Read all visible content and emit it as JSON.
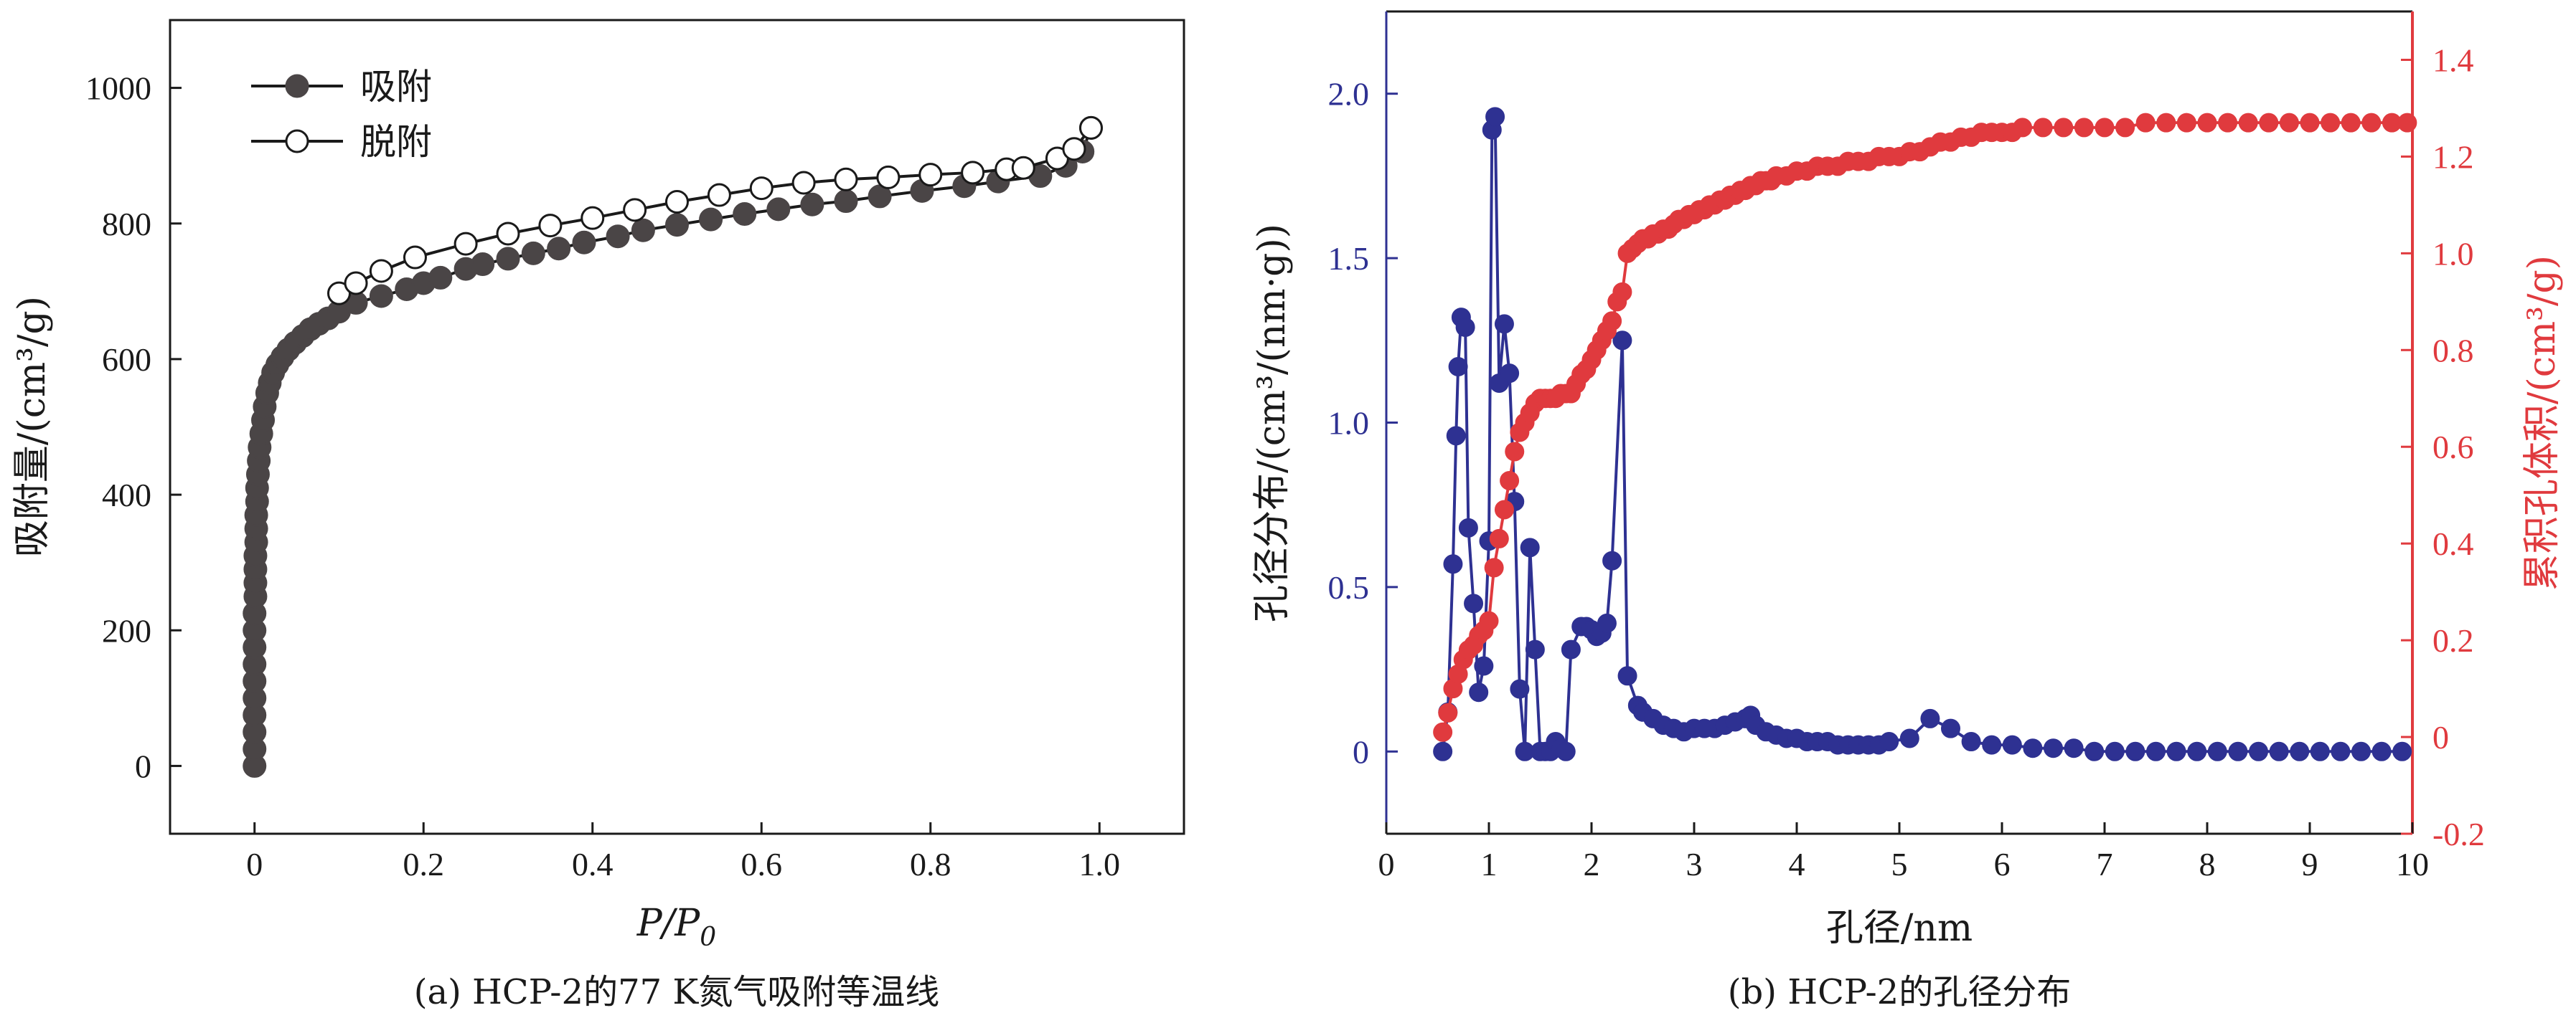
{
  "chart_data": [
    {
      "type": "scatter",
      "caption": "(a) HCP-2的77 K氮气吸附等温线",
      "xlabel_main": "P/P",
      "xlabel_sub": "0",
      "ylabel": "吸附量/(cm³/g)",
      "xlim": [
        -0.1,
        1.1
      ],
      "ylim": [
        -100,
        1100
      ],
      "xticks": [
        "0",
        "0.2",
        "0.4",
        "0.6",
        "0.8",
        "1.0"
      ],
      "yticks": [
        "0",
        "200",
        "400",
        "600",
        "800",
        "1000"
      ],
      "legend_position": "top-left",
      "series": [
        {
          "name": "吸附",
          "marker": "filled-circle",
          "color": "#4a4546",
          "x": [
            0.0,
            0.0,
            0.0,
            0.0,
            0.0,
            0.0,
            0.0,
            0.0,
            0.0,
            0.0,
            0.001,
            0.001,
            0.001,
            0.001,
            0.002,
            0.002,
            0.002,
            0.003,
            0.003,
            0.004,
            0.005,
            0.006,
            0.008,
            0.01,
            0.012,
            0.015,
            0.018,
            0.022,
            0.027,
            0.033,
            0.04,
            0.048,
            0.057,
            0.066,
            0.076,
            0.087,
            0.1,
            0.12,
            0.15,
            0.18,
            0.2,
            0.22,
            0.25,
            0.27,
            0.3,
            0.33,
            0.36,
            0.39,
            0.43,
            0.46,
            0.5,
            0.54,
            0.58,
            0.62,
            0.66,
            0.7,
            0.74,
            0.79,
            0.84,
            0.88,
            0.93,
            0.96,
            0.98,
            0.99
          ],
          "y": [
            0,
            25,
            50,
            75,
            100,
            125,
            150,
            175,
            200,
            225,
            250,
            270,
            290,
            310,
            330,
            350,
            370,
            390,
            410,
            430,
            450,
            470,
            490,
            510,
            530,
            550,
            565,
            580,
            592,
            603,
            614,
            624,
            634,
            644,
            652,
            660,
            670,
            683,
            693,
            703,
            712,
            720,
            733,
            740,
            748,
            756,
            763,
            772,
            781,
            790,
            798,
            806,
            814,
            821,
            828,
            833,
            840,
            848,
            855,
            862,
            870,
            885,
            906,
            941
          ]
        },
        {
          "name": "脱附",
          "marker": "open-circle",
          "color": "#1a1a1a",
          "x": [
            0.1,
            0.12,
            0.15,
            0.19,
            0.25,
            0.3,
            0.35,
            0.4,
            0.45,
            0.5,
            0.55,
            0.6,
            0.65,
            0.7,
            0.75,
            0.8,
            0.85,
            0.89,
            0.91,
            0.95,
            0.97,
            0.99
          ],
          "y": [
            697,
            712,
            730,
            750,
            770,
            785,
            797,
            808,
            820,
            832,
            842,
            852,
            860,
            865,
            868,
            872,
            875,
            880,
            882,
            896,
            910,
            941
          ]
        }
      ]
    },
    {
      "type": "line",
      "caption": "(b) HCP-2的孔径分布",
      "xlabel": "孔径/nm",
      "ylabel_left": "孔径分布/(cm³/(nm·g))",
      "ylabel_right": "累积孔体积/(cm³/g)",
      "xlim": [
        0,
        10
      ],
      "ylim_left": [
        -0.25,
        2.25
      ],
      "ylim_right": [
        -0.2,
        1.5
      ],
      "xticks": [
        "0",
        "1",
        "2",
        "3",
        "4",
        "5",
        "6",
        "7",
        "8",
        "9",
        "10"
      ],
      "yticks_left": [
        "0",
        "0.5",
        "1.0",
        "1.5",
        "2.0"
      ],
      "yticks_right": [
        "-0.2",
        "0",
        "0.2",
        "0.4",
        "0.6",
        "0.8",
        "1.0",
        "1.2",
        "1.4"
      ],
      "series": [
        {
          "name": "",
          "axis": "left",
          "color": "#2e3192",
          "x": [
            0.55,
            0.6,
            0.65,
            0.68,
            0.7,
            0.73,
            0.77,
            0.8,
            0.85,
            0.9,
            0.95,
            1.0,
            1.03,
            1.06,
            1.1,
            1.15,
            1.2,
            1.25,
            1.3,
            1.35,
            1.4,
            1.45,
            1.5,
            1.55,
            1.6,
            1.65,
            1.7,
            1.75,
            1.8,
            1.9,
            1.95,
            2.0,
            2.05,
            2.1,
            2.15,
            2.2,
            2.3,
            2.35,
            2.45,
            2.5,
            2.6,
            2.7,
            2.8,
            2.9,
            3.0,
            3.1,
            3.2,
            3.3,
            3.4,
            3.5,
            3.55,
            3.6,
            3.7,
            3.8,
            3.9,
            4.0,
            4.1,
            4.2,
            4.3,
            4.4,
            4.5,
            4.6,
            4.7,
            4.8,
            4.9,
            5.1,
            5.3,
            5.5,
            5.7,
            5.9,
            6.1,
            6.3,
            6.5,
            6.7,
            6.9,
            7.1,
            7.3,
            7.5,
            7.7,
            7.9,
            8.1,
            8.3,
            8.5,
            8.7,
            8.9,
            9.1,
            9.3,
            9.5,
            9.7,
            9.9
          ],
          "y": [
            0.0,
            0.12,
            0.57,
            0.96,
            1.17,
            1.32,
            1.29,
            0.68,
            0.45,
            0.18,
            0.26,
            0.64,
            1.89,
            1.93,
            1.12,
            1.3,
            1.15,
            0.76,
            0.19,
            0.0,
            0.62,
            0.31,
            0.0,
            0.0,
            0.0,
            0.03,
            0.01,
            0.0,
            0.31,
            0.38,
            0.38,
            0.37,
            0.35,
            0.36,
            0.39,
            0.58,
            1.25,
            0.23,
            0.14,
            0.12,
            0.1,
            0.08,
            0.07,
            0.06,
            0.07,
            0.07,
            0.07,
            0.08,
            0.09,
            0.1,
            0.11,
            0.08,
            0.06,
            0.05,
            0.04,
            0.04,
            0.03,
            0.03,
            0.03,
            0.02,
            0.02,
            0.02,
            0.02,
            0.02,
            0.03,
            0.04,
            0.1,
            0.07,
            0.03,
            0.02,
            0.02,
            0.01,
            0.01,
            0.01,
            0.0,
            0.0,
            0.0,
            0.0,
            0.0,
            0.0,
            0.0,
            0.0,
            0.0,
            0.0,
            0.0,
            0.0,
            0.0,
            0.0,
            0.0,
            0.0
          ]
        },
        {
          "name": "",
          "axis": "right",
          "color": "#e03a3e",
          "x": [
            0.55,
            0.6,
            0.65,
            0.7,
            0.75,
            0.8,
            0.85,
            0.9,
            0.95,
            1.0,
            1.05,
            1.1,
            1.15,
            1.2,
            1.25,
            1.3,
            1.35,
            1.4,
            1.45,
            1.5,
            1.55,
            1.6,
            1.65,
            1.7,
            1.75,
            1.8,
            1.85,
            1.9,
            1.95,
            2.0,
            2.05,
            2.1,
            2.15,
            2.2,
            2.25,
            2.3,
            2.35,
            2.4,
            2.45,
            2.5,
            2.55,
            2.6,
            2.65,
            2.7,
            2.75,
            2.8,
            2.85,
            2.9,
            2.95,
            3.0,
            3.05,
            3.1,
            3.15,
            3.2,
            3.25,
            3.3,
            3.35,
            3.4,
            3.45,
            3.5,
            3.55,
            3.6,
            3.65,
            3.7,
            3.75,
            3.8,
            3.9,
            4.0,
            4.1,
            4.2,
            4.3,
            4.4,
            4.5,
            4.6,
            4.7,
            4.8,
            4.9,
            5.0,
            5.1,
            5.2,
            5.3,
            5.4,
            5.5,
            5.6,
            5.7,
            5.8,
            5.9,
            6.0,
            6.1,
            6.2,
            6.4,
            6.6,
            6.8,
            7.0,
            7.2,
            7.4,
            7.6,
            7.8,
            8.0,
            8.2,
            8.4,
            8.6,
            8.8,
            9.0,
            9.2,
            9.4,
            9.6,
            9.8,
            9.95
          ],
          "y": [
            0.01,
            0.05,
            0.1,
            0.13,
            0.16,
            0.18,
            0.19,
            0.21,
            0.22,
            0.24,
            0.35,
            0.41,
            0.47,
            0.53,
            0.59,
            0.63,
            0.65,
            0.67,
            0.69,
            0.7,
            0.7,
            0.7,
            0.7,
            0.71,
            0.71,
            0.71,
            0.73,
            0.75,
            0.76,
            0.78,
            0.8,
            0.82,
            0.84,
            0.86,
            0.9,
            0.92,
            1.0,
            1.01,
            1.02,
            1.03,
            1.03,
            1.04,
            1.04,
            1.05,
            1.05,
            1.06,
            1.07,
            1.07,
            1.08,
            1.08,
            1.09,
            1.09,
            1.1,
            1.1,
            1.11,
            1.11,
            1.12,
            1.12,
            1.13,
            1.13,
            1.14,
            1.14,
            1.15,
            1.15,
            1.15,
            1.16,
            1.16,
            1.17,
            1.17,
            1.18,
            1.18,
            1.18,
            1.19,
            1.19,
            1.19,
            1.2,
            1.2,
            1.2,
            1.21,
            1.21,
            1.22,
            1.23,
            1.23,
            1.24,
            1.24,
            1.25,
            1.25,
            1.25,
            1.25,
            1.26,
            1.26,
            1.26,
            1.26,
            1.26,
            1.26,
            1.27,
            1.27,
            1.27,
            1.27,
            1.27,
            1.27,
            1.27,
            1.27,
            1.27,
            1.27,
            1.27,
            1.27,
            1.27,
            1.27
          ]
        }
      ]
    }
  ]
}
